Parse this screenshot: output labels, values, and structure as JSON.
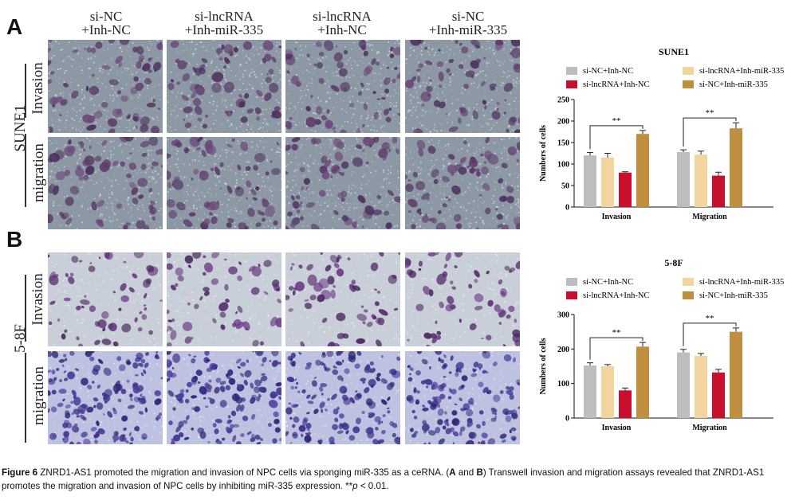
{
  "figure": {
    "panels": [
      {
        "letter": "A",
        "cell_line": "SUNE1",
        "row_labels": [
          "Invasion",
          "migration"
        ],
        "columns": [
          {
            "line1": "si-NC",
            "line2": "+Inh-NC"
          },
          {
            "line1": "si-lncRNA",
            "line2": "+Inh-miR-335"
          },
          {
            "line1": "si-lncRNA",
            "line2": "+Inh-NC"
          },
          {
            "line1": "si-NC",
            "line2": "+Inh-miR-335"
          }
        ]
      },
      {
        "letter": "B",
        "cell_line": "5-8F",
        "row_labels": [
          "Invasion",
          "migration"
        ]
      }
    ]
  },
  "chart_data": [
    {
      "type": "bar",
      "title": "SUNE1",
      "ylabel": "Numbers of cells",
      "categories": [
        "Invasion",
        "Migration"
      ],
      "ylim": [
        0,
        250
      ],
      "yticks": [
        0,
        50,
        100,
        150,
        200,
        250
      ],
      "legend": [
        "si-NC+Inh-NC",
        "si-lncRNA+Inh-miR-335",
        "si-lncRNA+Inh-NC",
        "si-NC+Inh-miR-335"
      ],
      "colors": [
        "#bdbdbd",
        "#f2d59e",
        "#c8102e",
        "#bf8f3f"
      ],
      "series": [
        {
          "name": "si-NC+Inh-NC",
          "values": [
            120,
            128
          ],
          "errors": [
            7,
            5
          ]
        },
        {
          "name": "si-lncRNA+Inh-miR-335",
          "values": [
            115,
            122
          ],
          "errors": [
            10,
            8
          ]
        },
        {
          "name": "si-lncRNA+Inh-NC",
          "values": [
            80,
            73
          ],
          "errors": [
            2,
            8
          ]
        },
        {
          "name": "si-NC+Inh-miR-335",
          "values": [
            170,
            183
          ],
          "errors": [
            8,
            13
          ]
        }
      ],
      "significance": "**"
    },
    {
      "type": "bar",
      "title": "5-8F",
      "ylabel": "Numbers of cells",
      "categories": [
        "Invasion",
        "Migration"
      ],
      "ylim": [
        0,
        300
      ],
      "yticks": [
        0,
        100,
        200,
        300
      ],
      "legend": [
        "si-NC+Inh-NC",
        "si-lncRNA+Inh-miR-335",
        "si-lncRNA+Inh-NC",
        "si-NC+Inh-miR-335"
      ],
      "colors": [
        "#bdbdbd",
        "#f2d59e",
        "#c8102e",
        "#bf8f3f"
      ],
      "series": [
        {
          "name": "si-NC+Inh-NC",
          "values": [
            152,
            190
          ],
          "errors": [
            8,
            9
          ]
        },
        {
          "name": "si-lncRNA+Inh-miR-335",
          "values": [
            150,
            180
          ],
          "errors": [
            5,
            7
          ]
        },
        {
          "name": "si-lncRNA+Inh-NC",
          "values": [
            80,
            132
          ],
          "errors": [
            7,
            9
          ]
        },
        {
          "name": "si-NC+Inh-miR-335",
          "values": [
            207,
            250
          ],
          "errors": [
            12,
            11
          ]
        }
      ],
      "significance": "**"
    }
  ],
  "caption": {
    "label": "Figure 6",
    "text": " ZNRD1-AS1 promoted the migration and invasion of NPC cells via sponging miR-335 as a ceRNA. (",
    "bold_a": "A",
    "and": " and ",
    "bold_b": "B",
    "text2": ") Transwell invasion and migration assays revealed that ZNRD1-AS1 promotes the migration and invasion of NPC cells by inhibiting miR-335 expression. **",
    "p": "p",
    "text3": " < 0.01."
  }
}
